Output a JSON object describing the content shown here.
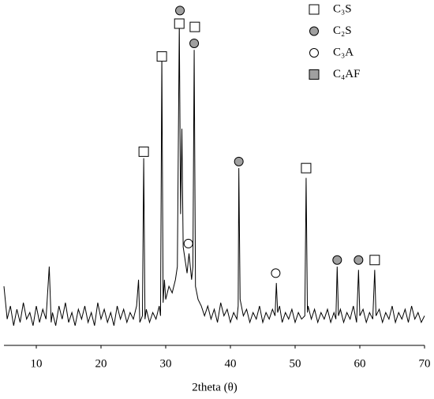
{
  "chart_data": {
    "type": "line",
    "x_label": "2theta (θ)",
    "xlim": [
      5,
      70
    ],
    "xticks": [
      10,
      20,
      30,
      40,
      50,
      60,
      70
    ],
    "ylim": [
      0,
      104
    ],
    "color": "#000000",
    "x": [
      5,
      5.5,
      6,
      6.5,
      7,
      7.5,
      8,
      8.5,
      9,
      9.5,
      10,
      10.5,
      11,
      11.5,
      12,
      12.3,
      12.5,
      13,
      13.5,
      14,
      14.5,
      15,
      15.5,
      16,
      16.5,
      17,
      17.5,
      18,
      18.5,
      19,
      19.5,
      20,
      20.5,
      21,
      21.5,
      22,
      22.5,
      23,
      23.5,
      24,
      24.5,
      25,
      25.5,
      25.8,
      26,
      26.4,
      26.6,
      26.8,
      27,
      27.5,
      28,
      28.5,
      29,
      29.2,
      29.4,
      29.6,
      29.8,
      30,
      30.5,
      31,
      31.5,
      31.8,
      32.1,
      32.3,
      32.5,
      32.7,
      33,
      33.3,
      33.6,
      34,
      34.2,
      34.4,
      34.6,
      35,
      35.5,
      36,
      36.5,
      37,
      37.5,
      38,
      38.5,
      39,
      39.5,
      40,
      40.5,
      41,
      41.2,
      41.3,
      41.5,
      42,
      42.5,
      43,
      43.5,
      44,
      44.5,
      45,
      45.5,
      46,
      46.5,
      46.9,
      47.1,
      47.3,
      47.6,
      48,
      48.5,
      49,
      49.5,
      50,
      50.5,
      51,
      51.5,
      51.7,
      51.9,
      52,
      52.5,
      53,
      53.5,
      54,
      54.5,
      55,
      55.5,
      56,
      56.3,
      56.5,
      56.7,
      57,
      57.5,
      58,
      58.5,
      59,
      59.5,
      59.8,
      60,
      60.5,
      61,
      61.5,
      62,
      62.3,
      62.5,
      63,
      63.5,
      64,
      64.5,
      65,
      65.5,
      66,
      66.5,
      67,
      67.5,
      68,
      68.5,
      69,
      69.5,
      70
    ],
    "values": [
      18,
      8,
      12,
      6,
      11,
      7,
      13,
      8,
      10,
      6,
      12,
      7,
      11,
      8,
      24,
      7,
      10,
      6,
      12,
      8,
      13,
      7,
      10,
      6,
      11,
      8,
      12,
      7,
      10,
      6,
      13,
      8,
      11,
      7,
      10,
      6,
      12,
      8,
      11,
      7,
      10,
      8,
      12,
      20,
      7,
      9,
      57,
      8,
      11,
      7,
      10,
      8,
      12,
      9,
      88,
      13,
      20,
      14,
      18,
      16,
      20,
      24,
      98,
      40,
      66,
      30,
      26,
      22,
      28,
      20,
      24,
      90,
      18,
      14,
      12,
      9,
      12,
      8,
      11,
      7,
      13,
      9,
      11,
      7,
      10,
      8,
      12,
      54,
      14,
      9,
      11,
      7,
      10,
      8,
      12,
      7,
      10,
      8,
      11,
      9,
      19,
      10,
      12,
      7,
      10,
      8,
      11,
      7,
      10,
      8,
      9,
      51,
      10,
      12,
      8,
      11,
      7,
      10,
      8,
      11,
      7,
      10,
      8,
      24,
      9,
      11,
      7,
      10,
      8,
      12,
      7,
      23,
      9,
      11,
      7,
      10,
      8,
      23,
      9,
      11,
      7,
      10,
      8,
      12,
      7,
      10,
      8,
      11,
      7,
      12,
      8,
      10,
      7,
      9
    ],
    "phases": [
      {
        "name": "C₃S",
        "marker": "square",
        "fill": "#ffffff",
        "x": [
          26.6,
          29.4,
          32.1,
          34.5,
          51.7,
          62.3
        ],
        "y": [
          59,
          88,
          98,
          97,
          54,
          26
        ]
      },
      {
        "name": "C₂S",
        "marker": "circle",
        "fill": "#a0a0a0",
        "x": [
          32.2,
          34.4,
          41.3,
          56.5,
          59.8
        ],
        "y": [
          102,
          92,
          56,
          26,
          26
        ]
      },
      {
        "name": "C₃A",
        "marker": "circle",
        "fill": "#ffffff",
        "x": [
          33.5,
          47.0
        ],
        "y": [
          31,
          22
        ]
      },
      {
        "name": "C₄AF",
        "marker": "square",
        "fill": "#a0a0a0",
        "x": [],
        "y": []
      }
    ]
  }
}
